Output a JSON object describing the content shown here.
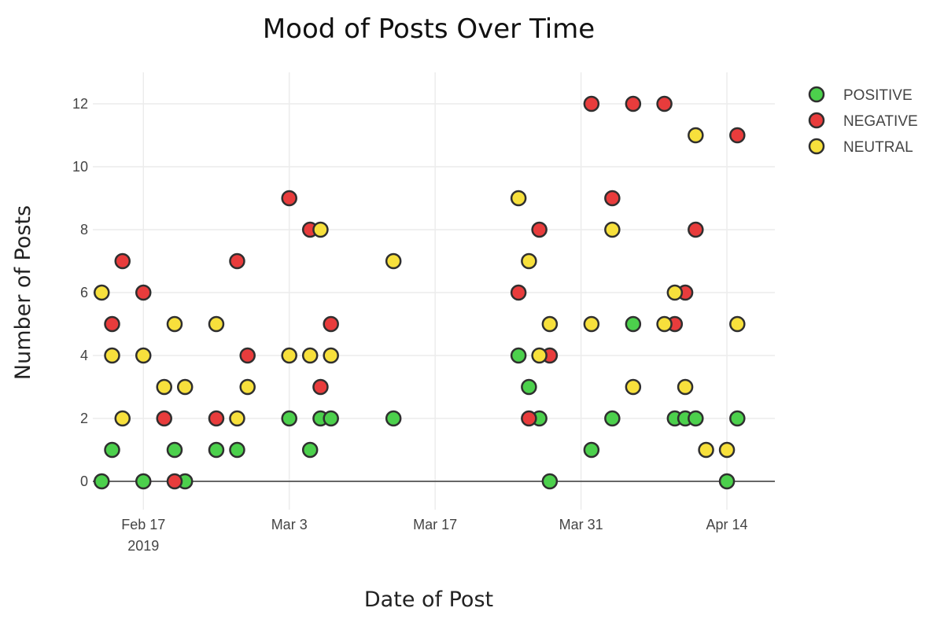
{
  "chart_data": {
    "type": "scatter",
    "title": "Mood of Posts Over Time",
    "xlabel": "Date of Post",
    "ylabel": "Number of Posts",
    "x_axis_type": "date",
    "xlim": [
      "2019-02-13",
      "2019-04-18"
    ],
    "ylim": [
      -0.9,
      13
    ],
    "x_ticks": [
      {
        "date": "2019-02-17",
        "label": "Feb 17",
        "sublabel": "2019"
      },
      {
        "date": "2019-03-03",
        "label": "Mar 3",
        "sublabel": ""
      },
      {
        "date": "2019-03-17",
        "label": "Mar 17",
        "sublabel": ""
      },
      {
        "date": "2019-03-31",
        "label": "Mar 31",
        "sublabel": ""
      },
      {
        "date": "2019-04-14",
        "label": "Apr 14",
        "sublabel": ""
      }
    ],
    "y_ticks": [
      0,
      2,
      4,
      6,
      8,
      10,
      12
    ],
    "grid": true,
    "legend_position": "top-right",
    "series": [
      {
        "name": "POSITIVE",
        "color": "#4cd04c",
        "points": [
          {
            "x": "2019-02-13",
            "y": 0
          },
          {
            "x": "2019-02-14",
            "y": 1
          },
          {
            "x": "2019-02-17",
            "y": 0
          },
          {
            "x": "2019-02-20",
            "y": 1
          },
          {
            "x": "2019-02-21",
            "y": 0
          },
          {
            "x": "2019-02-24",
            "y": 1
          },
          {
            "x": "2019-02-26",
            "y": 1
          },
          {
            "x": "2019-03-03",
            "y": 2
          },
          {
            "x": "2019-03-05",
            "y": 1
          },
          {
            "x": "2019-03-06",
            "y": 2
          },
          {
            "x": "2019-03-07",
            "y": 2
          },
          {
            "x": "2019-03-13",
            "y": 2
          },
          {
            "x": "2019-03-25",
            "y": 4
          },
          {
            "x": "2019-03-26",
            "y": 3
          },
          {
            "x": "2019-03-27",
            "y": 2
          },
          {
            "x": "2019-03-28",
            "y": 0
          },
          {
            "x": "2019-04-01",
            "y": 1
          },
          {
            "x": "2019-04-03",
            "y": 2
          },
          {
            "x": "2019-04-05",
            "y": 5
          },
          {
            "x": "2019-04-09",
            "y": 2
          },
          {
            "x": "2019-04-10",
            "y": 2
          },
          {
            "x": "2019-04-11",
            "y": 2
          },
          {
            "x": "2019-04-14",
            "y": 0
          },
          {
            "x": "2019-04-15",
            "y": 2
          }
        ]
      },
      {
        "name": "NEGATIVE",
        "color": "#e83c3c",
        "points": [
          {
            "x": "2019-02-14",
            "y": 5
          },
          {
            "x": "2019-02-15",
            "y": 7
          },
          {
            "x": "2019-02-17",
            "y": 6
          },
          {
            "x": "2019-02-19",
            "y": 2
          },
          {
            "x": "2019-02-20",
            "y": 0
          },
          {
            "x": "2019-02-24",
            "y": 2
          },
          {
            "x": "2019-02-26",
            "y": 7
          },
          {
            "x": "2019-02-27",
            "y": 4
          },
          {
            "x": "2019-03-03",
            "y": 9
          },
          {
            "x": "2019-03-05",
            "y": 8
          },
          {
            "x": "2019-03-06",
            "y": 3
          },
          {
            "x": "2019-03-07",
            "y": 5
          },
          {
            "x": "2019-03-25",
            "y": 6
          },
          {
            "x": "2019-03-26",
            "y": 2
          },
          {
            "x": "2019-03-27",
            "y": 8
          },
          {
            "x": "2019-03-28",
            "y": 4
          },
          {
            "x": "2019-04-01",
            "y": 12
          },
          {
            "x": "2019-04-03",
            "y": 9
          },
          {
            "x": "2019-04-05",
            "y": 12
          },
          {
            "x": "2019-04-08",
            "y": 12
          },
          {
            "x": "2019-04-09",
            "y": 5
          },
          {
            "x": "2019-04-10",
            "y": 6
          },
          {
            "x": "2019-04-11",
            "y": 8
          },
          {
            "x": "2019-04-15",
            "y": 11
          }
        ]
      },
      {
        "name": "NEUTRAL",
        "color": "#f7e03c",
        "points": [
          {
            "x": "2019-02-13",
            "y": 6
          },
          {
            "x": "2019-02-14",
            "y": 4
          },
          {
            "x": "2019-02-15",
            "y": 2
          },
          {
            "x": "2019-02-17",
            "y": 4
          },
          {
            "x": "2019-02-19",
            "y": 3
          },
          {
            "x": "2019-02-20",
            "y": 5
          },
          {
            "x": "2019-02-21",
            "y": 3
          },
          {
            "x": "2019-02-24",
            "y": 5
          },
          {
            "x": "2019-02-26",
            "y": 2
          },
          {
            "x": "2019-02-27",
            "y": 3
          },
          {
            "x": "2019-03-03",
            "y": 4
          },
          {
            "x": "2019-03-05",
            "y": 4
          },
          {
            "x": "2019-03-06",
            "y": 8
          },
          {
            "x": "2019-03-07",
            "y": 4
          },
          {
            "x": "2019-03-13",
            "y": 7
          },
          {
            "x": "2019-03-25",
            "y": 9
          },
          {
            "x": "2019-03-26",
            "y": 7
          },
          {
            "x": "2019-03-27",
            "y": 4
          },
          {
            "x": "2019-03-28",
            "y": 5
          },
          {
            "x": "2019-04-01",
            "y": 5
          },
          {
            "x": "2019-04-03",
            "y": 8
          },
          {
            "x": "2019-04-05",
            "y": 3
          },
          {
            "x": "2019-04-08",
            "y": 5
          },
          {
            "x": "2019-04-09",
            "y": 6
          },
          {
            "x": "2019-04-10",
            "y": 3
          },
          {
            "x": "2019-04-11",
            "y": 11
          },
          {
            "x": "2019-04-12",
            "y": 1
          },
          {
            "x": "2019-04-14",
            "y": 1
          },
          {
            "x": "2019-04-15",
            "y": 5
          }
        ]
      }
    ]
  }
}
